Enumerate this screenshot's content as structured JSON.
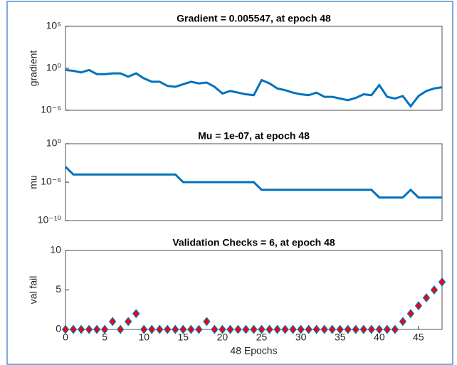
{
  "chart_data": [
    {
      "type": "line",
      "title": "Gradient = 0.005547, at epoch 48",
      "y_label": "gradient",
      "ylog": true,
      "color": "#0072bd",
      "x": [
        0,
        1,
        2,
        3,
        4,
        5,
        6,
        7,
        8,
        9,
        10,
        11,
        12,
        13,
        14,
        15,
        16,
        17,
        18,
        19,
        20,
        21,
        22,
        23,
        24,
        25,
        26,
        27,
        28,
        29,
        30,
        31,
        32,
        33,
        34,
        35,
        36,
        37,
        38,
        39,
        40,
        41,
        42,
        43,
        44,
        45,
        46,
        47,
        48
      ],
      "values": [
        0.63,
        0.5,
        0.32,
        0.63,
        0.2,
        0.2,
        0.25,
        0.25,
        0.1,
        0.25,
        0.063,
        0.025,
        0.025,
        0.0079,
        0.0063,
        0.0126,
        0.025,
        0.016,
        0.02,
        0.0063,
        0.001,
        0.002,
        0.00126,
        0.0008,
        0.00063,
        0.04,
        0.016,
        0.004,
        0.0025,
        0.00126,
        0.0008,
        0.00063,
        0.00126,
        0.0004,
        0.0004,
        0.00025,
        0.00016,
        0.0003,
        0.0008,
        0.00063,
        0.01,
        0.0004,
        0.00025,
        0.0005,
        3e-05,
        0.0005,
        0.002,
        0.004,
        0.005547
      ],
      "xlim": [
        0,
        48
      ],
      "ylim": [
        1e-05,
        100000
      ],
      "yticks": [
        {
          "value": 1e-05,
          "label": "10⁻⁵"
        },
        {
          "value": 1,
          "label": "10⁰"
        },
        {
          "value": 100000,
          "label": "10⁵"
        }
      ]
    },
    {
      "type": "line",
      "title": "Mu = 1e-07, at epoch 48",
      "y_label": "mu",
      "ylog": true,
      "color": "#0072bd",
      "x": [
        0,
        1,
        2,
        3,
        4,
        5,
        6,
        7,
        8,
        9,
        10,
        11,
        12,
        13,
        14,
        15,
        16,
        17,
        18,
        19,
        20,
        21,
        22,
        23,
        24,
        25,
        26,
        27,
        28,
        29,
        30,
        31,
        32,
        33,
        34,
        35,
        36,
        37,
        38,
        39,
        40,
        41,
        42,
        43,
        44,
        45,
        46,
        47,
        48
      ],
      "values": [
        0.001,
        0.0001,
        0.0001,
        0.0001,
        0.0001,
        0.0001,
        0.0001,
        0.0001,
        0.0001,
        0.0001,
        0.0001,
        0.0001,
        0.0001,
        0.0001,
        0.0001,
        1e-05,
        1e-05,
        1e-05,
        1e-05,
        1e-05,
        1e-05,
        1e-05,
        1e-05,
        1e-05,
        1e-05,
        1e-06,
        1e-06,
        1e-06,
        1e-06,
        1e-06,
        1e-06,
        1e-06,
        1e-06,
        1e-06,
        1e-06,
        1e-06,
        1e-06,
        1e-06,
        1e-06,
        1e-06,
        1e-07,
        1e-07,
        1e-07,
        1e-07,
        1e-06,
        1e-07,
        1e-07,
        1e-07,
        1e-07
      ],
      "xlim": [
        0,
        48
      ],
      "ylim": [
        1e-10,
        1
      ],
      "yticks": [
        {
          "value": 1e-10,
          "label": "10⁻¹⁰"
        },
        {
          "value": 1e-05,
          "label": "10⁻⁵"
        },
        {
          "value": 1,
          "label": "10⁰"
        }
      ]
    },
    {
      "type": "scatter",
      "title": "Validation Checks = 6, at epoch 48",
      "y_label": "val fail",
      "x_label": "48 Epochs",
      "color": "#ff0000",
      "edge_color": "#0072bd",
      "x": [
        0,
        1,
        2,
        3,
        4,
        5,
        6,
        7,
        8,
        9,
        10,
        11,
        12,
        13,
        14,
        15,
        16,
        17,
        18,
        19,
        20,
        21,
        22,
        23,
        24,
        25,
        26,
        27,
        28,
        29,
        30,
        31,
        32,
        33,
        34,
        35,
        36,
        37,
        38,
        39,
        40,
        41,
        42,
        43,
        44,
        45,
        46,
        47,
        48
      ],
      "values": [
        0,
        0,
        0,
        0,
        0,
        0,
        1,
        0,
        1,
        2,
        0,
        0,
        0,
        0,
        0,
        0,
        0,
        0,
        1,
        0,
        0,
        0,
        0,
        0,
        0,
        0,
        0,
        0,
        0,
        0,
        0,
        0,
        0,
        0,
        0,
        0,
        0,
        0,
        0,
        0,
        0,
        0,
        0,
        1,
        2,
        3,
        4,
        5,
        6
      ],
      "xlim": [
        0,
        48
      ],
      "ylim": [
        0,
        10
      ],
      "yticks": [
        0,
        5,
        10
      ],
      "xticks": [
        0,
        5,
        10,
        15,
        20,
        25,
        30,
        35,
        40,
        45
      ]
    }
  ]
}
